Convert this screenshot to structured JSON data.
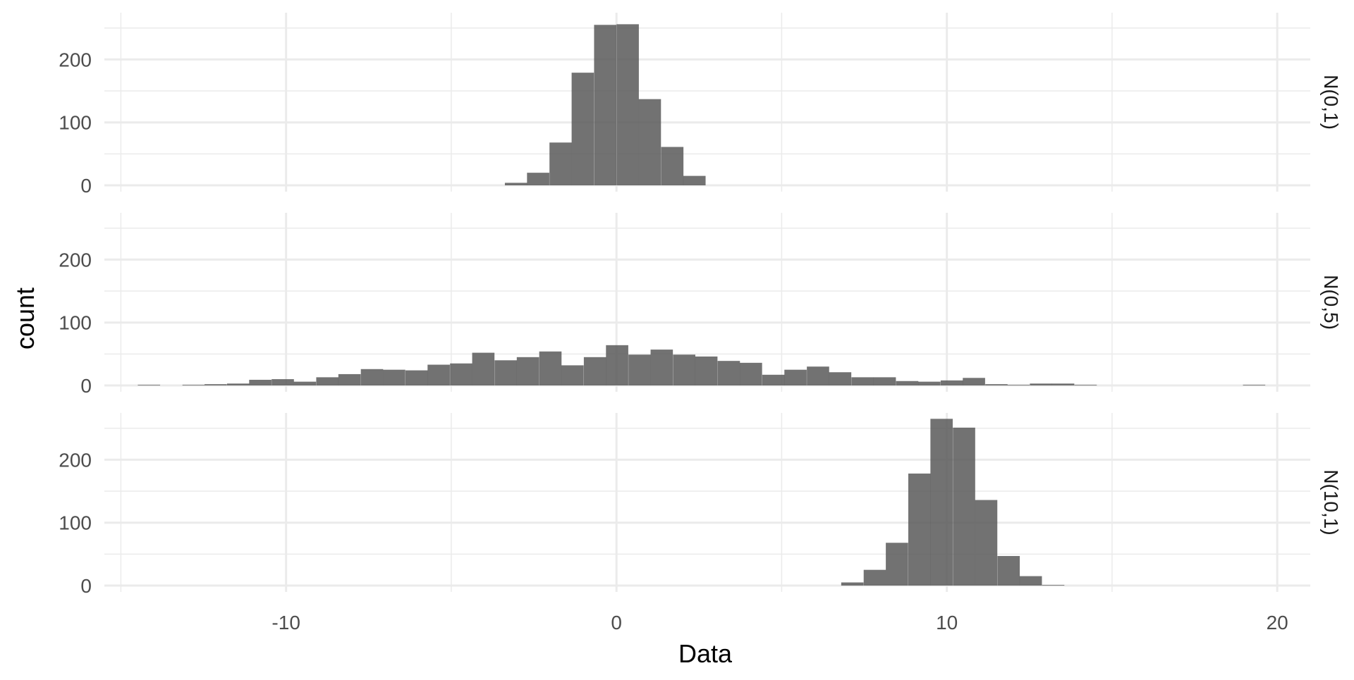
{
  "chart_data": {
    "type": "bar",
    "subtype": "faceted-histogram",
    "xlabel": "Data",
    "ylabel": "count",
    "xlim": [
      -15.5,
      21
    ],
    "ylim": [
      0,
      270
    ],
    "x_ticks": [
      -10,
      0,
      10,
      20
    ],
    "x_tick_labels": [
      "-10",
      "0",
      "10",
      "20"
    ],
    "y_ticks": [
      0,
      100,
      200
    ],
    "y_tick_labels": [
      "0",
      "100",
      "200"
    ],
    "grid": true,
    "bar_color": "#595959",
    "bin_width": 0.675,
    "facets": [
      {
        "label": "N(0,1)",
        "bins": [
          {
            "x": -3.04,
            "count": 4
          },
          {
            "x": -2.37,
            "count": 20
          },
          {
            "x": -1.69,
            "count": 68
          },
          {
            "x": -1.02,
            "count": 179
          },
          {
            "x": -0.34,
            "count": 255
          },
          {
            "x": 0.34,
            "count": 256
          },
          {
            "x": 1.01,
            "count": 137
          },
          {
            "x": 1.69,
            "count": 61
          },
          {
            "x": 2.36,
            "count": 15
          }
        ]
      },
      {
        "label": "N(0,5)",
        "bins": [
          {
            "x": -14.15,
            "count": 1
          },
          {
            "x": -12.8,
            "count": 1
          },
          {
            "x": -12.13,
            "count": 2
          },
          {
            "x": -11.45,
            "count": 3
          },
          {
            "x": -10.78,
            "count": 9
          },
          {
            "x": -10.1,
            "count": 10
          },
          {
            "x": -9.43,
            "count": 6
          },
          {
            "x": -8.75,
            "count": 13
          },
          {
            "x": -8.08,
            "count": 18
          },
          {
            "x": -7.4,
            "count": 26
          },
          {
            "x": -6.73,
            "count": 25
          },
          {
            "x": -6.05,
            "count": 24
          },
          {
            "x": -5.38,
            "count": 33
          },
          {
            "x": -4.7,
            "count": 35
          },
          {
            "x": -4.03,
            "count": 52
          },
          {
            "x": -3.35,
            "count": 40
          },
          {
            "x": -2.68,
            "count": 45
          },
          {
            "x": -2.0,
            "count": 54
          },
          {
            "x": -1.33,
            "count": 32
          },
          {
            "x": -0.65,
            "count": 45
          },
          {
            "x": 0.02,
            "count": 64
          },
          {
            "x": 0.7,
            "count": 49
          },
          {
            "x": 1.37,
            "count": 57
          },
          {
            "x": 2.05,
            "count": 49
          },
          {
            "x": 2.72,
            "count": 46
          },
          {
            "x": 3.4,
            "count": 39
          },
          {
            "x": 4.07,
            "count": 36
          },
          {
            "x": 4.75,
            "count": 17
          },
          {
            "x": 5.42,
            "count": 25
          },
          {
            "x": 6.1,
            "count": 30
          },
          {
            "x": 6.77,
            "count": 21
          },
          {
            "x": 7.45,
            "count": 13
          },
          {
            "x": 8.12,
            "count": 13
          },
          {
            "x": 8.8,
            "count": 7
          },
          {
            "x": 9.47,
            "count": 6
          },
          {
            "x": 10.15,
            "count": 8
          },
          {
            "x": 10.82,
            "count": 12
          },
          {
            "x": 11.5,
            "count": 2
          },
          {
            "x": 12.17,
            "count": 1
          },
          {
            "x": 12.85,
            "count": 3
          },
          {
            "x": 13.52,
            "count": 3
          },
          {
            "x": 14.2,
            "count": 1
          },
          {
            "x": 19.3,
            "count": 1
          }
        ]
      },
      {
        "label": "N(10,1)",
        "bins": [
          {
            "x": 7.14,
            "count": 5
          },
          {
            "x": 7.82,
            "count": 25
          },
          {
            "x": 8.49,
            "count": 68
          },
          {
            "x": 9.17,
            "count": 178
          },
          {
            "x": 9.84,
            "count": 265
          },
          {
            "x": 10.52,
            "count": 251
          },
          {
            "x": 11.19,
            "count": 136
          },
          {
            "x": 11.87,
            "count": 47
          },
          {
            "x": 12.54,
            "count": 15
          },
          {
            "x": 13.22,
            "count": 1
          }
        ]
      }
    ]
  }
}
